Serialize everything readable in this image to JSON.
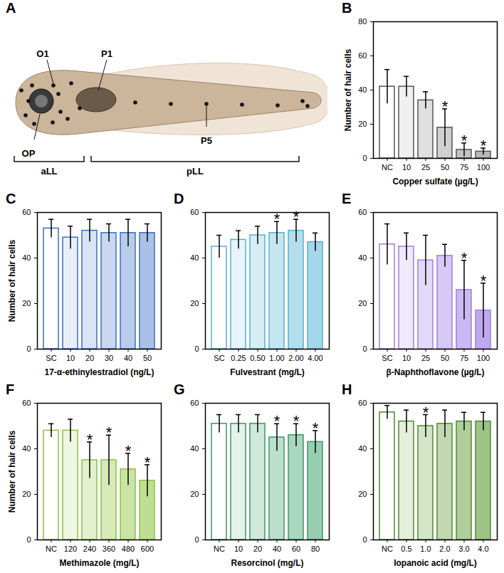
{
  "diagram": {
    "panel": "A",
    "labels": {
      "O1": "O1",
      "P1": "P1",
      "OP": "OP",
      "P5": "P5"
    },
    "regions": [
      "aLL",
      "pLL"
    ]
  },
  "chart_data": [
    {
      "panel": "B",
      "type": "bar",
      "xlabel": "Copper sulfate (µg/L)",
      "ylabel": "Number of hair cells",
      "categories": [
        "NC",
        "10",
        "25",
        "50",
        "75",
        "100"
      ],
      "values": [
        42,
        42,
        34,
        18,
        5,
        4
      ],
      "errors": [
        10,
        6,
        5,
        11,
        4,
        2
      ],
      "colors": [
        "#ffffff",
        "#f0f0f0",
        "#e0e0e0",
        "#d0d0d0",
        "#c4c4c4",
        "#b8b8b8"
      ],
      "color": "#555555",
      "ylim": [
        0,
        80
      ],
      "yticks": [
        0,
        20,
        40,
        60,
        80
      ],
      "annotations": [
        {
          "category": "50",
          "text": "*"
        },
        {
          "category": "75",
          "text": "*"
        },
        {
          "category": "100",
          "text": "*"
        }
      ]
    },
    {
      "panel": "C",
      "type": "bar",
      "xlabel": "17-α-ethinylestradiol (ng/L)",
      "ylabel": "Number of hair cells",
      "categories": [
        "SC",
        "10",
        "20",
        "30",
        "40",
        "50"
      ],
      "values": [
        53,
        49,
        52,
        51,
        51,
        51
      ],
      "errors": [
        4,
        5,
        5,
        4,
        6,
        4
      ],
      "colors": [
        "#ffffff",
        "#e9eff9",
        "#d9e4f5",
        "#c9d8f0",
        "#b9cdeb",
        "#a9c1e6"
      ],
      "color": "#3a6fc4",
      "ylim": [
        0,
        60
      ],
      "yticks": [
        0,
        20,
        40,
        60
      ],
      "annotations": []
    },
    {
      "panel": "D",
      "type": "bar",
      "xlabel": "Fulvestrant (mg/L)",
      "categories": [
        "SC",
        "0.25",
        "0.50",
        "1.00",
        "2.00",
        "4.00"
      ],
      "values": [
        45,
        48,
        50,
        51,
        52,
        47
      ],
      "errors": [
        5,
        4,
        4,
        5,
        5,
        4
      ],
      "colors": [
        "#ffffff",
        "#e7f4f9",
        "#d6edf5",
        "#c5e6f1",
        "#b4deed",
        "#a3d7e9"
      ],
      "color": "#5aaed0",
      "ylim": [
        0,
        60
      ],
      "yticks": [
        0,
        20,
        40,
        60
      ],
      "annotations": [
        {
          "category": "1.00",
          "text": "*"
        },
        {
          "category": "2.00",
          "text": "*"
        }
      ]
    },
    {
      "panel": "E",
      "type": "bar",
      "xlabel": "β-Naphthoflavone (µg/L)",
      "categories": [
        "SC",
        "10",
        "25",
        "50",
        "75",
        "100"
      ],
      "values": [
        46,
        45,
        39,
        41,
        26,
        17
      ],
      "errors": [
        9,
        6,
        11,
        5,
        13,
        12
      ],
      "colors": [
        "#ffffff",
        "#efe9fb",
        "#e3d9f8",
        "#d6c9f5",
        "#cab9f2",
        "#bea9ef"
      ],
      "color": "#9f7fe0",
      "ylim": [
        0,
        60
      ],
      "yticks": [
        0,
        20,
        40,
        60
      ],
      "annotations": [
        {
          "category": "75",
          "text": "*"
        },
        {
          "category": "100",
          "text": "*"
        }
      ]
    },
    {
      "panel": "F",
      "type": "bar",
      "xlabel": "Methimazole (mg/L)",
      "ylabel": "Number of hair cells",
      "categories": [
        "NC",
        "120",
        "240",
        "360",
        "480",
        "600"
      ],
      "values": [
        48,
        48,
        35,
        35,
        31,
        26
      ],
      "errors": [
        3,
        5,
        8,
        11,
        7,
        7
      ],
      "colors": [
        "#ffffff",
        "#eef6e1",
        "#e2f0cd",
        "#d6eab9",
        "#cae4a5",
        "#bede91"
      ],
      "color": "#8cbf4a",
      "ylim": [
        0,
        60
      ],
      "yticks": [
        0,
        20,
        40,
        60
      ],
      "annotations": [
        {
          "category": "240",
          "text": "*"
        },
        {
          "category": "360",
          "text": "*"
        },
        {
          "category": "480",
          "text": "*"
        },
        {
          "category": "600",
          "text": "*"
        }
      ]
    },
    {
      "panel": "G",
      "type": "bar",
      "xlabel": "Resorcinol (mg/L)",
      "categories": [
        "NC",
        "10",
        "20",
        "40",
        "60",
        "80"
      ],
      "values": [
        51,
        51,
        51,
        45,
        46,
        43
      ],
      "errors": [
        4,
        4,
        4,
        6,
        5,
        5
      ],
      "colors": [
        "#ffffff",
        "#e3f2ea",
        "#d0e9dc",
        "#bde0ce",
        "#aad7c0",
        "#97ceb2"
      ],
      "color": "#3c9566",
      "ylim": [
        0,
        60
      ],
      "yticks": [
        0,
        20,
        40,
        60
      ],
      "annotations": [
        {
          "category": "40",
          "text": "*"
        },
        {
          "category": "60",
          "text": "*"
        },
        {
          "category": "80",
          "text": "*"
        }
      ]
    },
    {
      "panel": "H",
      "type": "bar",
      "xlabel": "Iopanoic acid (mg/L)",
      "categories": [
        "NC",
        "0.5",
        "1.0",
        "2.0",
        "3.0",
        "4.0"
      ],
      "values": [
        56,
        52,
        50,
        51,
        52,
        52
      ],
      "errors": [
        3,
        5,
        5,
        6,
        4,
        4
      ],
      "colors": [
        "#ffffff",
        "#e5efdd",
        "#d3e4c7",
        "#c1d9b1",
        "#afce9b",
        "#9dc385"
      ],
      "color": "#4d8a30",
      "ylim": [
        0,
        60
      ],
      "yticks": [
        0,
        20,
        40,
        60
      ],
      "annotations": [
        {
          "category": "1.0",
          "text": "*"
        }
      ]
    }
  ]
}
